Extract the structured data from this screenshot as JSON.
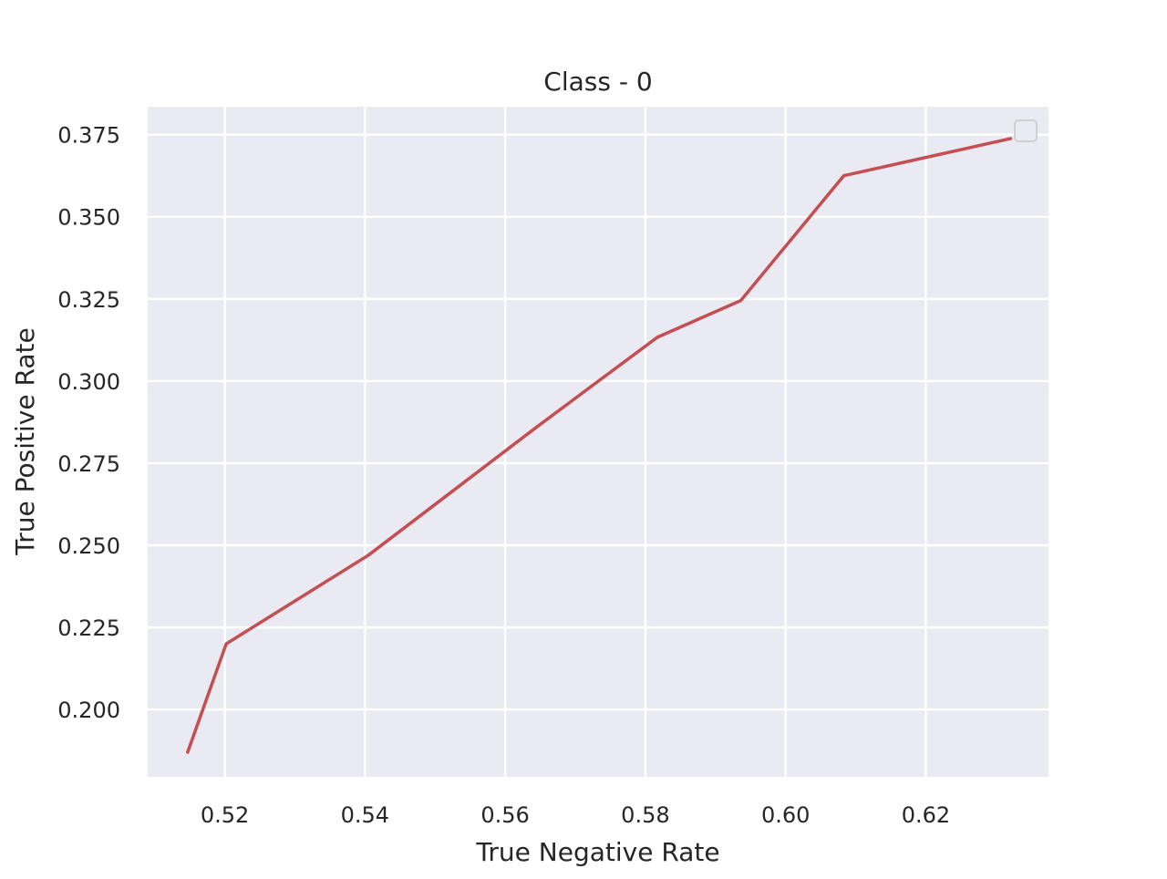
{
  "chart_data": {
    "type": "line",
    "title": "Class - 0",
    "xlabel": "True Negative Rate",
    "ylabel": "True Positive Rate",
    "xlim": [
      0.509,
      0.6375
    ],
    "ylim": [
      0.1795,
      0.3835
    ],
    "xticks": [
      0.52,
      0.54,
      0.56,
      0.58,
      0.6,
      0.62
    ],
    "xtick_labels": [
      "0.52",
      "0.54",
      "0.56",
      "0.58",
      "0.60",
      "0.62"
    ],
    "yticks": [
      0.2,
      0.225,
      0.25,
      0.275,
      0.3,
      0.325,
      0.35,
      0.375
    ],
    "ytick_labels": [
      "0.200",
      "0.225",
      "0.250",
      "0.275",
      "0.300",
      "0.325",
      "0.350",
      "0.375"
    ],
    "grid": true,
    "legend": {
      "placement": "top-right",
      "entries": []
    },
    "series": [
      {
        "color": "#c44e52",
        "x": [
          0.5147,
          0.5202,
          0.5405,
          0.5645,
          0.5817,
          0.5936,
          0.6083,
          0.6321
        ],
        "y": [
          0.187,
          0.22,
          0.247,
          0.286,
          0.3133,
          0.3245,
          0.3625,
          0.3738
        ]
      }
    ],
    "colors": {
      "plot_background": "#eaeaf2",
      "grid": "#ffffff",
      "line": "#c44e52",
      "text": "#262626"
    }
  }
}
